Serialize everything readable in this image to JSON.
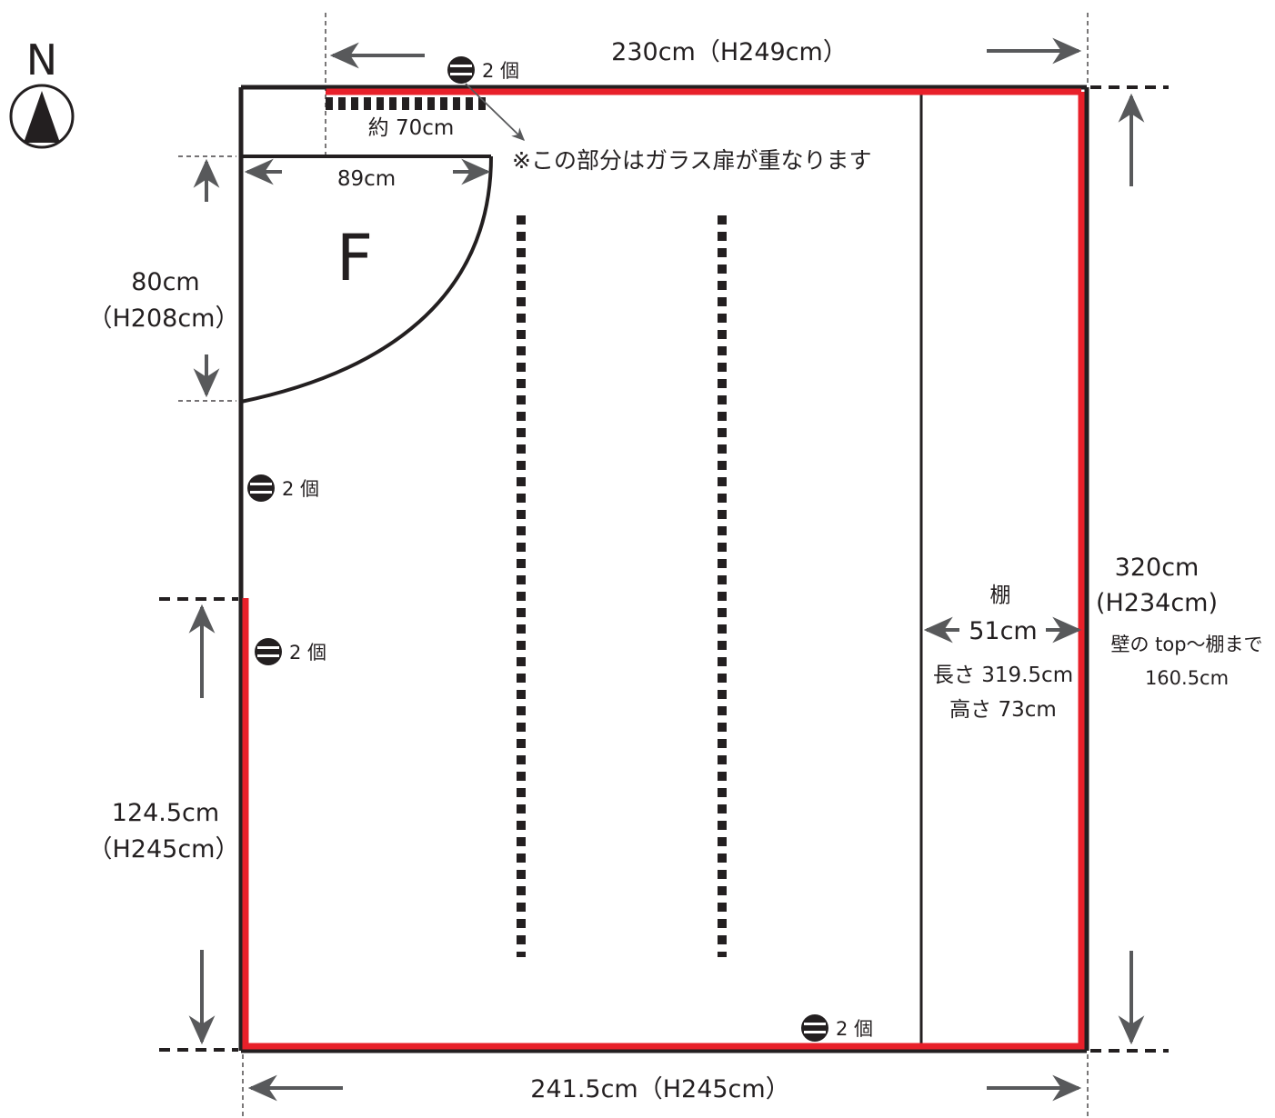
{
  "north": {
    "label": "N",
    "icon": "north-arrow-icon"
  },
  "dimensions": {
    "top_width": "230cm（H249cm）",
    "bottom_width": "241.5cm（H245cm）",
    "left_upper_length": "80cm",
    "left_upper_height": "（H208cm）",
    "left_lower_length": "124.5cm",
    "left_lower_height": "（H245cm）",
    "right_length": "320cm",
    "right_height": "(H234cm)",
    "door_width": "89cm",
    "overlap_width": "約 70cm"
  },
  "door": {
    "label": "F"
  },
  "note": "※この部分はガラス扉が重なります",
  "outlets": [
    {
      "icon": "outlet-icon",
      "count": "2 個"
    },
    {
      "icon": "outlet-icon",
      "count": "2 個"
    },
    {
      "icon": "outlet-icon",
      "count": "2 個"
    },
    {
      "icon": "outlet-icon",
      "count": "2 個"
    }
  ],
  "shelf": {
    "title": "棚",
    "depth": "51cm",
    "length": "長さ 319.5cm",
    "height": "高さ 73cm",
    "wall_to_shelf_label": "壁の top〜棚まで",
    "wall_to_shelf_value": "160.5cm"
  },
  "colors": {
    "wall": "#231f20",
    "highlight": "#e8202a",
    "arrow": "#58595b"
  }
}
